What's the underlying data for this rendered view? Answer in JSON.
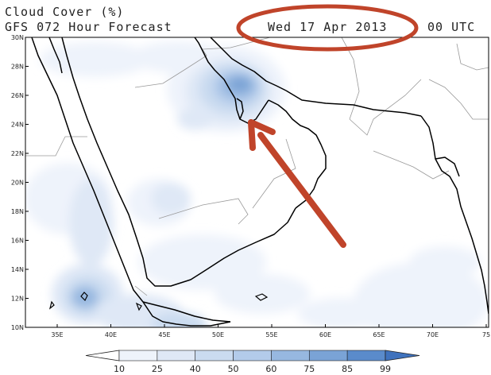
{
  "header": {
    "title_line1": "Cloud Cover (%)",
    "title_line2": "GFS 072 Hour Forecast",
    "date": "Wed 17 Apr 2013",
    "time": "00 UTC"
  },
  "map": {
    "lat_labels": [
      "30N",
      "28N",
      "26N",
      "24N",
      "22N",
      "20N",
      "18N",
      "16N",
      "14N",
      "12N",
      "10N"
    ],
    "lon_labels": [
      "35E",
      "40E",
      "45E",
      "50E",
      "55E",
      "60E",
      "65E",
      "70E",
      "75"
    ],
    "colors": {
      "coast": "#000000",
      "border": "#999999",
      "annotation": "#c0442a"
    }
  },
  "colorbar": {
    "labels": [
      "10",
      "25",
      "40",
      "50",
      "60",
      "75",
      "85",
      "99"
    ],
    "colors": [
      "#ffffff",
      "#eef3fb",
      "#dfe8f6",
      "#cadbf0",
      "#b3cbea",
      "#97b8e0",
      "#7aa3d6",
      "#5a8bcb",
      "#3f72bd"
    ]
  }
}
